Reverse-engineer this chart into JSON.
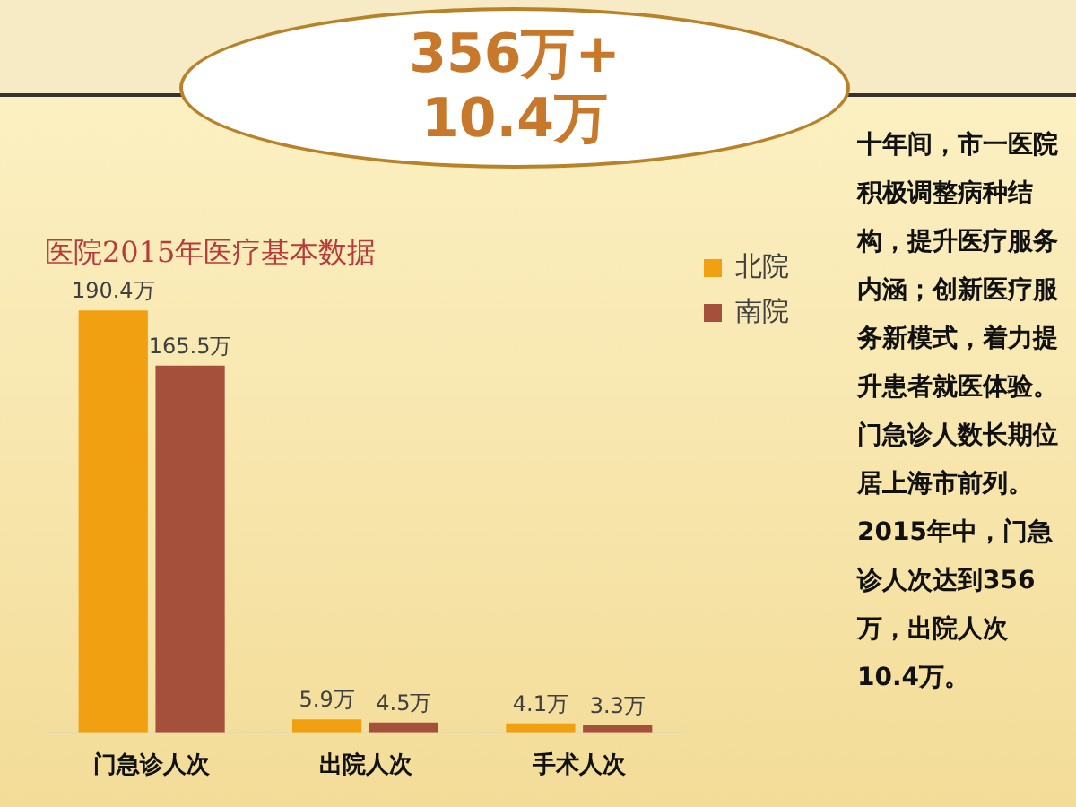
{
  "chart_data": {
    "type": "bar",
    "title": "医院2015年医疗基本数据",
    "subtitle": "356万+ 10.4万",
    "categories": [
      "门急诊人次",
      "出院人次",
      "手术人次"
    ],
    "series": [
      {
        "name": "北院",
        "color": "#f0a010",
        "values": [
          190.4,
          5.9,
          4.1
        ],
        "value_labels": [
          "190.4万",
          "5.9万",
          "4.1万"
        ]
      },
      {
        "name": "南院",
        "color": "#a5503a",
        "values": [
          165.5,
          4.5,
          3.3
        ],
        "value_labels": [
          "165.5万",
          "4.5万",
          "3.3万"
        ]
      }
    ],
    "legend": "top right",
    "annotations": [
      "十年间，市一医院积极调整病种结构，提升医疗服务内涵；创新医疗服务新模式，着力提升患者就医体验。门急诊人数长期位居上海市前列。2015年中，门急诊人次达到356万，出院人次10.4万。"
    ]
  }
}
